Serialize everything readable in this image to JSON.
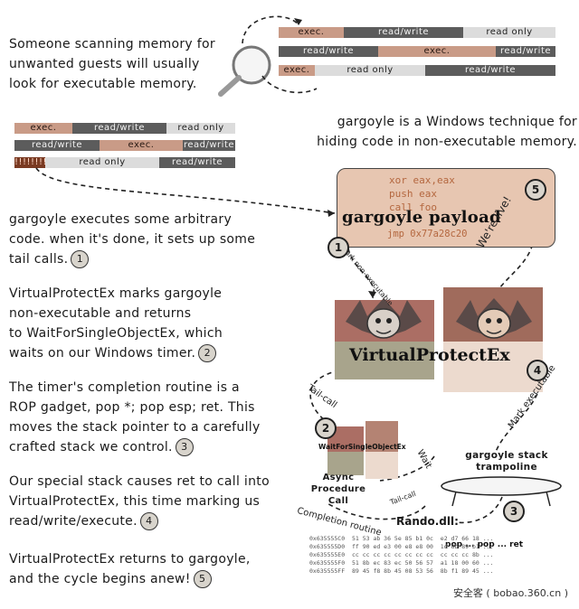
{
  "intro": {
    "scan_text": "Someone scanning memory for\nunwanted guests will usually\nlook for executable memory.",
    "technique_text": "gargoyle is a Windows technique for\nhiding code in non-executable memory."
  },
  "memory_labels": {
    "exec": "exec.",
    "read_write": "read/write",
    "read_only": "read only",
    "marked": "!!!!!!!!"
  },
  "steps": [
    {
      "text": "gargoyle executes some arbitrary\ncode. when it's done, it sets up some\ntail calls.",
      "badge": "1"
    },
    {
      "text": "VirtualProtectEx marks gargoyle\nnon-executable and returns\nto WaitForSingleObjectEx, which\nwaits on our Windows timer.",
      "badge": "2"
    },
    {
      "text": "The timer's completion routine is  a\nROP gadget, pop *; pop esp; ret. This\nmoves the stack pointer to a carefully\ncrafted stack we control.",
      "badge": "3"
    },
    {
      "text": "Our special stack causes ret to call into\nVirtualProtectEx, this time marking us\nread/write/execute.",
      "badge": "4"
    },
    {
      "text": "VirtualProtectEx returns to gargoyle,\nand the cycle begins anew!",
      "badge": "5"
    }
  ],
  "payload": {
    "code_lines": [
      "xor eax,eax",
      "push eax",
      "call foo"
    ],
    "title": "gargoyle payload",
    "jmp_line": "jmp 0x77a28c20"
  },
  "diagram": {
    "virtual_protect": "VirtualProtectEx",
    "wait_for": "WaitForSingleObjectEx",
    "async_call": "Async\nProcedure\nCall",
    "trampoline": "gargoyle stack\ntrampoline",
    "rando_dll": "Rando.dll:",
    "rop_gadget": "pop ... pop ... ret",
    "labels": {
      "were_live": "We're live!",
      "mark_exec": "Mark executable",
      "tail_call": "Tail-call",
      "wait": "Wait",
      "completion_routine": "Completion routine",
      "mark_non_exec": "Mark non-executable",
      "tail_call_2": "Tail-call"
    },
    "badges": [
      "1",
      "2",
      "3",
      "4",
      "5"
    ],
    "hex_dump": "0x635555C0  51 53 ab 36 5e 85 b1 0c  e2 d7 66 18 ...\n0x635555D0  ff 90 ed e3 00 e8 e8 00  1d 8b 89 b1 ...\n0x635555E0  cc cc cc cc cc cc cc cc  cc cc cc 8b ...\n0x635555F0  51 8b ec 83 ec 50 56 57  a1 18 00 60 ...\n0x635555FF  89 45 f8 8b 45 08 53 56  8b f1 89 45 ..."
  },
  "watermark": "安全客 ( bobao.360.cn )",
  "colors": {
    "exec": "#c99b87",
    "read_write": "#5c5c5c",
    "read_only": "#dcdcdc",
    "payload_bg": "#e7c6b1",
    "vp_tile": "#a8a48c"
  }
}
